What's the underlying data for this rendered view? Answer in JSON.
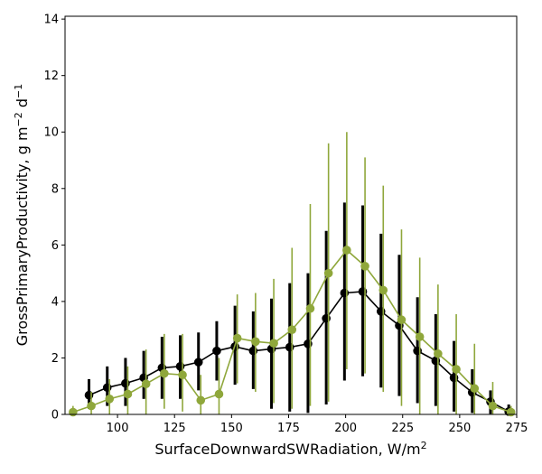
{
  "chart_data": {
    "type": "line",
    "title": "",
    "xlabel_main": "SurfaceDownwardSWRadiation,  W/m",
    "xlabel_sup": "2",
    "ylabel_main": "GrossPrimaryProductivity,  g m",
    "ylabel_sup1": "−2",
    "ylabel_mid": " d",
    "ylabel_sup2": "−1",
    "xlim": [
      77,
      275
    ],
    "ylim": [
      0,
      14.1
    ],
    "xticks": [
      100,
      125,
      150,
      175,
      200,
      225,
      250,
      275
    ],
    "yticks": [
      0,
      2,
      4,
      6,
      8,
      10,
      12,
      14
    ],
    "grid": false,
    "legend": "none",
    "series": [
      {
        "color": "#000000",
        "x": [
          87.5,
          95.5,
          103.5,
          111.5,
          119.5,
          127.5,
          135.5,
          143.5,
          151.5,
          159.5,
          167.5,
          175.5,
          183.5,
          191.5,
          199.5,
          207.5,
          215.5,
          223.5,
          231.5,
          239.5,
          247.5,
          255.5,
          263.5,
          271.5
        ],
        "y": [
          0.68,
          0.95,
          1.1,
          1.3,
          1.65,
          1.7,
          1.85,
          2.25,
          2.4,
          2.25,
          2.32,
          2.38,
          2.5,
          3.4,
          4.3,
          4.35,
          3.65,
          3.15,
          2.25,
          1.9,
          1.3,
          0.78,
          0.45,
          0.1
        ],
        "err_low": [
          0.2,
          0.3,
          0.3,
          0.55,
          0.55,
          0.55,
          0.85,
          1.2,
          1.05,
          0.9,
          0.2,
          0.1,
          0.05,
          0.35,
          1.2,
          1.35,
          0.95,
          0.65,
          0.4,
          0.3,
          0.1,
          0.05,
          0.02,
          0.0
        ],
        "err_high": [
          1.25,
          1.7,
          2.0,
          2.25,
          2.75,
          2.8,
          2.9,
          3.3,
          3.85,
          3.65,
          4.1,
          4.65,
          5.0,
          6.5,
          7.5,
          7.4,
          6.4,
          5.65,
          4.15,
          3.55,
          2.6,
          1.6,
          0.85,
          0.35
        ]
      },
      {
        "color": "#8fa73b",
        "x": [
          80.5,
          88.5,
          96.5,
          104.5,
          112.5,
          120.5,
          128.5,
          136.5,
          144.5,
          152.5,
          160.5,
          168.5,
          176.5,
          184.5,
          192.5,
          200.5,
          208.5,
          216.5,
          224.5,
          232.5,
          240.5,
          248.5,
          256.5,
          264.5,
          272.5
        ],
        "y": [
          0.08,
          0.3,
          0.55,
          0.72,
          1.08,
          1.45,
          1.4,
          0.5,
          0.72,
          2.7,
          2.58,
          2.52,
          3.0,
          3.75,
          5.0,
          5.82,
          5.25,
          4.4,
          3.35,
          2.75,
          2.15,
          1.6,
          0.92,
          0.3,
          0.08
        ],
        "err_low": [
          0.0,
          0.0,
          0.0,
          0.0,
          0.0,
          0.2,
          0.1,
          0.0,
          0.0,
          1.1,
          0.8,
          0.4,
          0.2,
          0.3,
          0.45,
          1.6,
          1.45,
          0.8,
          0.3,
          0.0,
          0.0,
          0.0,
          0.0,
          0.0,
          0.0
        ],
        "err_high": [
          0.3,
          0.8,
          1.25,
          1.7,
          2.3,
          2.85,
          2.85,
          1.4,
          2.0,
          4.25,
          4.3,
          4.8,
          5.9,
          7.45,
          9.6,
          10.0,
          9.1,
          8.1,
          6.55,
          5.55,
          4.6,
          3.55,
          2.5,
          1.15,
          0.3
        ]
      }
    ]
  }
}
